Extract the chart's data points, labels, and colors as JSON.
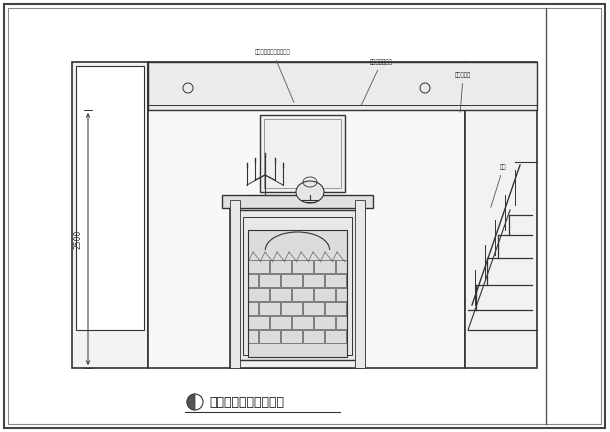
{
  "title": "客厅楼梯处壁炉立面图",
  "bg_color": "#ffffff",
  "lc": "#333333",
  "lc_thin": "#666666",
  "ann1_text": "刷墙台三角头刷漆墙底水",
  "ann2_text": "爵士台墙石台面",
  "ann3_text": "管罗比墙石",
  "ann4_text": "栏杆",
  "dim_text": "2500"
}
